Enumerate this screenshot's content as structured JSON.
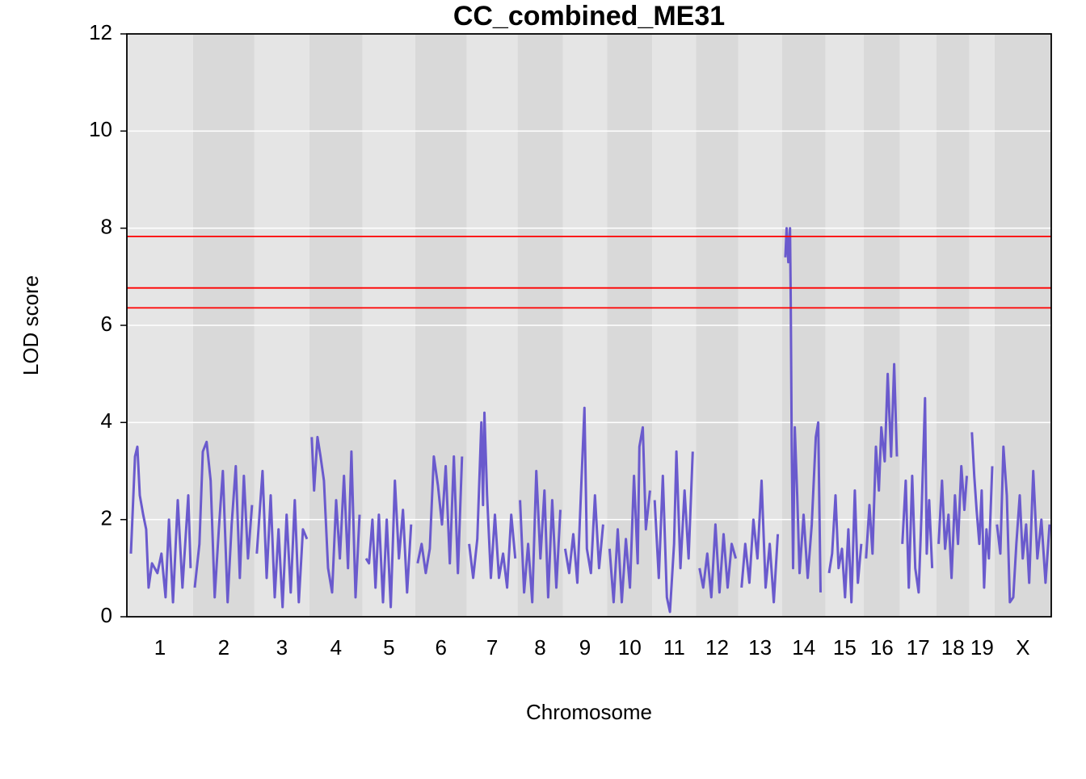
{
  "chart_data": {
    "type": "line",
    "title": "CC_combined_ME31",
    "xlabel": "Chromosome",
    "ylabel": "LOD score",
    "ylim": [
      0,
      12
    ],
    "yticks": [
      0,
      2,
      4,
      6,
      8,
      10,
      12
    ],
    "xlim": [
      0,
      2725
    ],
    "grid": true,
    "color": "#6a5acd",
    "band_colors": [
      "#e5e5e5",
      "#d9d9d9"
    ],
    "grid_color": "#ffffff",
    "thresholds": [
      7.83,
      6.77,
      6.36
    ],
    "threshold_color": "#ff0000",
    "chromosomes": [
      {
        "name": "1",
        "length": 195,
        "positions": [
          12,
          24,
          31,
          38,
          48,
          57,
          64,
          74,
          90,
          102,
          114,
          124,
          136,
          150,
          164,
          181,
          188
        ],
        "lod": [
          1.3,
          3.3,
          3.5,
          2.5,
          2.1,
          1.8,
          0.6,
          1.1,
          0.9,
          1.3,
          0.4,
          2.0,
          0.3,
          2.4,
          0.6,
          2.5,
          1.0
        ]
      },
      {
        "name": "2",
        "length": 181,
        "positions": [
          5,
          19,
          29,
          40,
          52,
          64,
          76,
          88,
          102,
          114,
          126,
          138,
          150,
          162,
          174
        ],
        "lod": [
          0.6,
          1.5,
          3.4,
          3.6,
          2.8,
          0.4,
          1.8,
          3.0,
          0.3,
          1.9,
          3.1,
          0.8,
          2.9,
          1.2,
          2.3
        ]
      },
      {
        "name": "3",
        "length": 162,
        "positions": [
          7,
          24,
          36,
          48,
          60,
          71,
          83,
          95,
          107,
          119,
          131,
          143,
          155
        ],
        "lod": [
          1.3,
          3.0,
          0.8,
          2.5,
          0.4,
          1.8,
          0.2,
          2.1,
          0.5,
          2.4,
          0.3,
          1.8,
          1.6
        ]
      },
      {
        "name": "4",
        "length": 157,
        "positions": [
          7,
          14,
          24,
          33,
          43,
          55,
          67,
          79,
          90,
          102,
          114,
          124,
          136,
          148
        ],
        "lod": [
          3.7,
          2.6,
          3.7,
          3.3,
          2.8,
          1.0,
          0.5,
          2.4,
          1.2,
          2.9,
          1.0,
          3.4,
          0.4,
          2.1
        ]
      },
      {
        "name": "5",
        "length": 155,
        "positions": [
          10,
          19,
          29,
          38,
          48,
          60,
          71,
          83,
          95,
          107,
          119,
          131,
          143
        ],
        "lod": [
          1.2,
          1.1,
          2.0,
          0.6,
          2.1,
          0.3,
          2.0,
          0.2,
          2.8,
          1.2,
          2.2,
          0.5,
          1.9
        ]
      },
      {
        "name": "6",
        "length": 152,
        "positions": [
          7,
          19,
          31,
          43,
          55,
          67,
          79,
          90,
          102,
          114,
          126,
          138
        ],
        "lod": [
          1.1,
          1.5,
          0.9,
          1.4,
          3.3,
          2.7,
          1.9,
          3.1,
          1.1,
          3.3,
          0.9,
          3.3
        ]
      },
      {
        "name": "7",
        "length": 150,
        "positions": [
          7,
          19,
          31,
          43,
          48,
          52,
          60,
          71,
          83,
          95,
          107,
          119,
          131,
          143
        ],
        "lod": [
          1.5,
          0.8,
          1.6,
          4.0,
          2.3,
          4.2,
          2.5,
          0.8,
          2.1,
          0.8,
          1.3,
          0.6,
          2.1,
          1.2
        ]
      },
      {
        "name": "8",
        "length": 133,
        "positions": [
          7,
          19,
          31,
          43,
          55,
          67,
          79,
          90,
          102,
          114,
          126
        ],
        "lod": [
          2.4,
          0.5,
          1.5,
          0.3,
          3.0,
          1.2,
          2.6,
          0.4,
          2.4,
          0.6,
          2.2
        ]
      },
      {
        "name": "9",
        "length": 131,
        "positions": [
          7,
          19,
          31,
          43,
          55,
          64,
          71,
          83,
          95,
          107,
          119
        ],
        "lod": [
          1.4,
          0.9,
          1.7,
          0.7,
          2.8,
          4.3,
          1.4,
          0.9,
          2.5,
          1.0,
          1.9
        ]
      },
      {
        "name": "10",
        "length": 133,
        "positions": [
          7,
          19,
          31,
          43,
          55,
          67,
          79,
          90,
          95,
          105,
          114,
          126
        ],
        "lod": [
          1.4,
          0.3,
          1.8,
          0.3,
          1.6,
          0.6,
          2.9,
          1.1,
          3.5,
          3.9,
          1.8,
          2.6
        ]
      },
      {
        "name": "11",
        "length": 129,
        "positions": [
          7,
          19,
          31,
          43,
          52,
          64,
          71,
          83,
          95,
          107,
          119
        ],
        "lod": [
          2.4,
          0.8,
          2.9,
          0.4,
          0.1,
          1.5,
          3.4,
          1.0,
          2.6,
          1.2,
          3.4
        ]
      },
      {
        "name": "12",
        "length": 124,
        "positions": [
          10,
          21,
          33,
          45,
          57,
          69,
          81,
          93,
          105,
          117
        ],
        "lod": [
          1.0,
          0.6,
          1.3,
          0.4,
          1.9,
          0.5,
          1.7,
          0.6,
          1.5,
          1.2
        ]
      },
      {
        "name": "13",
        "length": 129,
        "positions": [
          10,
          21,
          33,
          45,
          57,
          69,
          81,
          93,
          105,
          117
        ],
        "lod": [
          0.6,
          1.5,
          0.7,
          2.0,
          1.2,
          2.8,
          0.6,
          1.5,
          0.3,
          1.7
        ]
      },
      {
        "name": "14",
        "length": 129,
        "positions": [
          10,
          14,
          19,
          24,
          26,
          29,
          33,
          38,
          45,
          52,
          64,
          76,
          88,
          100,
          107,
          114
        ],
        "lod": [
          7.4,
          8.0,
          7.3,
          8.0,
          6.5,
          3.5,
          1.0,
          3.9,
          2.5,
          0.9,
          2.1,
          0.8,
          1.9,
          3.7,
          4.0,
          0.5
        ]
      },
      {
        "name": "15",
        "length": 112,
        "positions": [
          10,
          19,
          29,
          38,
          48,
          57,
          67,
          76,
          86,
          95,
          105
        ],
        "lod": [
          0.9,
          1.3,
          2.5,
          1.0,
          1.4,
          0.4,
          1.8,
          0.3,
          2.6,
          0.7,
          1.5
        ]
      },
      {
        "name": "16",
        "length": 107,
        "positions": [
          7,
          17,
          26,
          36,
          45,
          52,
          62,
          71,
          81,
          90,
          98
        ],
        "lod": [
          1.2,
          2.3,
          1.3,
          3.5,
          2.6,
          3.9,
          3.2,
          5.0,
          3.3,
          5.2,
          3.3
        ]
      },
      {
        "name": "17",
        "length": 107,
        "positions": [
          7,
          17,
          26,
          36,
          45,
          55,
          64,
          74,
          79,
          86,
          95
        ],
        "lod": [
          1.5,
          2.8,
          0.6,
          2.9,
          1.0,
          0.5,
          2.2,
          4.5,
          1.3,
          2.4,
          1.0
        ]
      },
      {
        "name": "18",
        "length": 98,
        "positions": [
          7,
          17,
          26,
          36,
          45,
          55,
          64,
          74,
          83,
          90
        ],
        "lod": [
          1.5,
          2.8,
          1.4,
          2.1,
          0.8,
          2.5,
          1.5,
          3.1,
          2.2,
          2.9
        ]
      },
      {
        "name": "19",
        "length": 74,
        "positions": [
          7,
          14,
          21,
          29,
          36,
          43,
          50,
          57,
          67
        ],
        "lod": [
          3.8,
          2.9,
          2.2,
          1.5,
          2.6,
          0.6,
          1.8,
          1.2,
          3.1
        ]
      },
      {
        "name": "X",
        "length": 167,
        "positions": [
          7,
          17,
          26,
          36,
          45,
          55,
          64,
          74,
          83,
          93,
          102,
          114,
          126,
          138,
          150,
          162
        ],
        "lod": [
          1.9,
          1.3,
          3.5,
          2.5,
          0.3,
          0.4,
          1.5,
          2.5,
          1.2,
          1.9,
          0.7,
          3.0,
          1.2,
          2.0,
          0.7,
          1.9
        ]
      }
    ]
  }
}
